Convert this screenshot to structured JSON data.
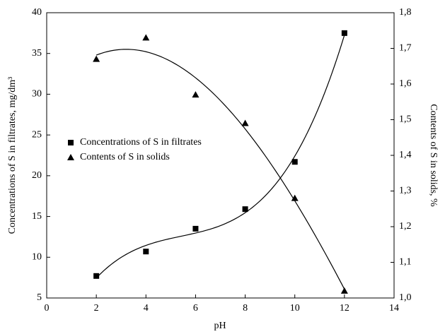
{
  "chart_data": {
    "type": "scatter",
    "x_label": "pH",
    "y_label": "Concentrations of S in filtrates, mg/dm³",
    "y2_label": "Contents of S in solids, %",
    "x": [
      2,
      4,
      6,
      8,
      10,
      12
    ],
    "series": [
      {
        "name": "Concentrations of S in filtrates",
        "color": "#000000",
        "marker": "square",
        "values": [
          7.7,
          10.7,
          13.5,
          15.9,
          21.7,
          37.5
        ]
      },
      {
        "name": "Contents of S in solids",
        "color": "#000000",
        "marker": "triangle",
        "axis": "y2",
        "values": [
          1.67,
          1.73,
          1.57,
          1.49,
          1.28,
          1.02
        ]
      }
    ],
    "trendline": "cubic",
    "xlim": [
      0,
      14
    ],
    "xticks": [
      0,
      2,
      4,
      6,
      8,
      10,
      12,
      14
    ],
    "ylim": [
      5,
      40
    ],
    "yticks": [
      5,
      10,
      15,
      20,
      25,
      30,
      35,
      40
    ],
    "y2lim": [
      1.0,
      1.8
    ],
    "y2ticks": [
      {
        "value": 1.0,
        "label": "1,0"
      },
      {
        "value": 1.1,
        "label": "1,1"
      },
      {
        "value": 1.2,
        "label": "1,2"
      },
      {
        "value": 1.3,
        "label": "1,3"
      },
      {
        "value": 1.4,
        "label": "1,4"
      },
      {
        "value": 1.5,
        "label": "1,5"
      },
      {
        "value": 1.6,
        "label": "1,6"
      },
      {
        "value": 1.7,
        "label": "1,7"
      },
      {
        "value": 1.8,
        "label": "1,8"
      }
    ],
    "legend": "middle-left"
  }
}
